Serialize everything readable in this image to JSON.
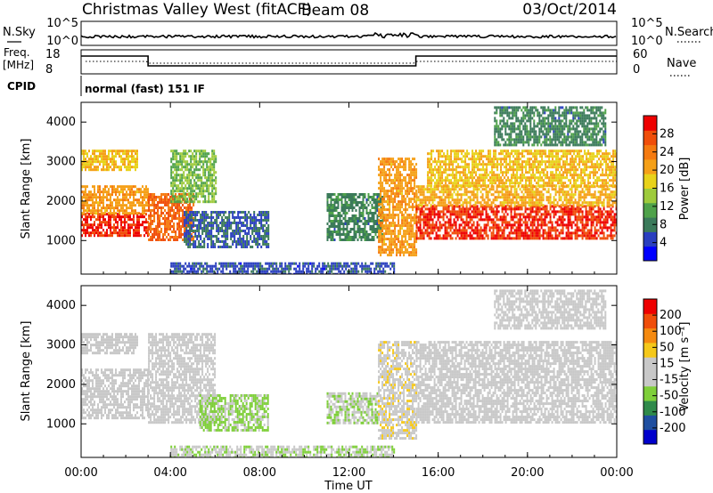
{
  "header": {
    "station": "Christmas Valley West (fitACF)",
    "beam": "Beam 08",
    "date": "03/Oct/2014"
  },
  "nsky_panel": {
    "left_label": "N.Sky",
    "right_label": "N.Search",
    "left_ticks": [
      "10^5",
      "10^0"
    ],
    "right_ticks": [
      "10^5",
      "10^0"
    ]
  },
  "freq_panel": {
    "left_label_1": "Freq.",
    "left_label_2": "[MHz]",
    "right_label": "Nave",
    "left_ticks": [
      "18",
      "8"
    ],
    "right_ticks": [
      "60",
      "0"
    ]
  },
  "cpid": {
    "label": "CPID",
    "mode": "normal (fast) 151 IF"
  },
  "colors": {
    "power_scale": [
      "#0000ff",
      "#2a3fbf",
      "#3b7a5a",
      "#4fa24a",
      "#9ecb3c",
      "#e8d21a",
      "#f5a018",
      "#f57a10",
      "#f04e0a",
      "#ee0000"
    ],
    "velocity_scale": [
      "#0000cc",
      "#1f4fa0",
      "#2f8a4a",
      "#7fcf3a",
      "#c8c8c8",
      "#c8c8c8",
      "#f5c81a",
      "#f58a10",
      "#f04e0a",
      "#ee0000"
    ]
  },
  "chart_data": [
    {
      "type": "heatmap",
      "panel": "power",
      "ylabel": "Slant Range [km]",
      "xlabel": "Time UT",
      "x_ticks": [
        "00:00",
        "04:00",
        "08:00",
        "12:00",
        "16:00",
        "20:00",
        "00:00"
      ],
      "y_ticks": [
        "1000",
        "2000",
        "3000",
        "4000"
      ],
      "ylim": [
        150,
        4500
      ],
      "xlim_hours": [
        0,
        24
      ],
      "colorbar": {
        "label": "Power [dB]",
        "ticks": [
          "28",
          "24",
          "20",
          "16",
          "12",
          "8",
          "4"
        ],
        "range": [
          0,
          30
        ]
      },
      "regions": [
        {
          "t0": 0.0,
          "t1": 3.0,
          "r0": 1150,
          "r1": 1700,
          "value": 27
        },
        {
          "t0": 0.0,
          "t1": 3.0,
          "r0": 1700,
          "r1": 2400,
          "value": 20
        },
        {
          "t0": 0.0,
          "t1": 2.5,
          "r0": 2800,
          "r1": 3300,
          "value": 18
        },
        {
          "t0": 3.0,
          "t1": 5.0,
          "r0": 1050,
          "r1": 2200,
          "value": 24
        },
        {
          "t0": 4.0,
          "t1": 6.0,
          "r0": 2000,
          "r1": 3300,
          "value": 12
        },
        {
          "t0": 4.6,
          "t1": 8.4,
          "r0": 850,
          "r1": 1750,
          "value": 6
        },
        {
          "t0": 11.0,
          "t1": 13.5,
          "r0": 1000,
          "r1": 2200,
          "value": 8
        },
        {
          "t0": 13.3,
          "t1": 15.0,
          "r0": 600,
          "r1": 3100,
          "value": 20
        },
        {
          "t0": 15.0,
          "t1": 24.0,
          "r0": 1050,
          "r1": 1900,
          "value": 27
        },
        {
          "t0": 15.0,
          "t1": 24.0,
          "r0": 1900,
          "r1": 2400,
          "value": 19
        },
        {
          "t0": 15.5,
          "t1": 24.0,
          "r0": 2400,
          "r1": 3300,
          "value": 18
        },
        {
          "t0": 18.5,
          "t1": 23.5,
          "r0": 3400,
          "r1": 4400,
          "value": 8
        },
        {
          "t0": 4.0,
          "t1": 14.0,
          "r0": 150,
          "r1": 450,
          "value": 5
        }
      ]
    },
    {
      "type": "heatmap",
      "panel": "velocity",
      "ylabel": "Slant Range [km]",
      "xlabel": "Time UT",
      "x_ticks": [
        "00:00",
        "04:00",
        "08:00",
        "12:00",
        "16:00",
        "20:00",
        "00:00"
      ],
      "y_ticks": [
        "1000",
        "2000",
        "3000",
        "4000"
      ],
      "ylim": [
        150,
        4500
      ],
      "xlim_hours": [
        0,
        24
      ],
      "colorbar": {
        "label": "Velocity [m s⁻¹]",
        "ticks": [
          "200",
          "100",
          "50",
          "15",
          "-15",
          "-50",
          "-100",
          "-200"
        ],
        "range": [
          -250,
          250
        ]
      },
      "regions": [
        {
          "t0": 0.0,
          "t1": 3.0,
          "r0": 1150,
          "r1": 2400,
          "value": 0
        },
        {
          "t0": 0.0,
          "t1": 2.5,
          "r0": 2800,
          "r1": 3300,
          "value": 0
        },
        {
          "t0": 3.0,
          "t1": 6.0,
          "r0": 1050,
          "r1": 3300,
          "value": 0
        },
        {
          "t0": 5.3,
          "t1": 8.4,
          "r0": 850,
          "r1": 1750,
          "value": -60
        },
        {
          "t0": 11.0,
          "t1": 13.3,
          "r0": 1000,
          "r1": 1800,
          "value": -40
        },
        {
          "t0": 13.3,
          "t1": 15.0,
          "r0": 600,
          "r1": 3100,
          "value": 30
        },
        {
          "t0": 15.0,
          "t1": 24.0,
          "r0": 1050,
          "r1": 3100,
          "value": 0
        },
        {
          "t0": 18.5,
          "t1": 23.5,
          "r0": 3400,
          "r1": 4400,
          "value": 0
        },
        {
          "t0": 4.0,
          "t1": 14.0,
          "r0": 150,
          "r1": 450,
          "value": -40
        }
      ]
    }
  ]
}
